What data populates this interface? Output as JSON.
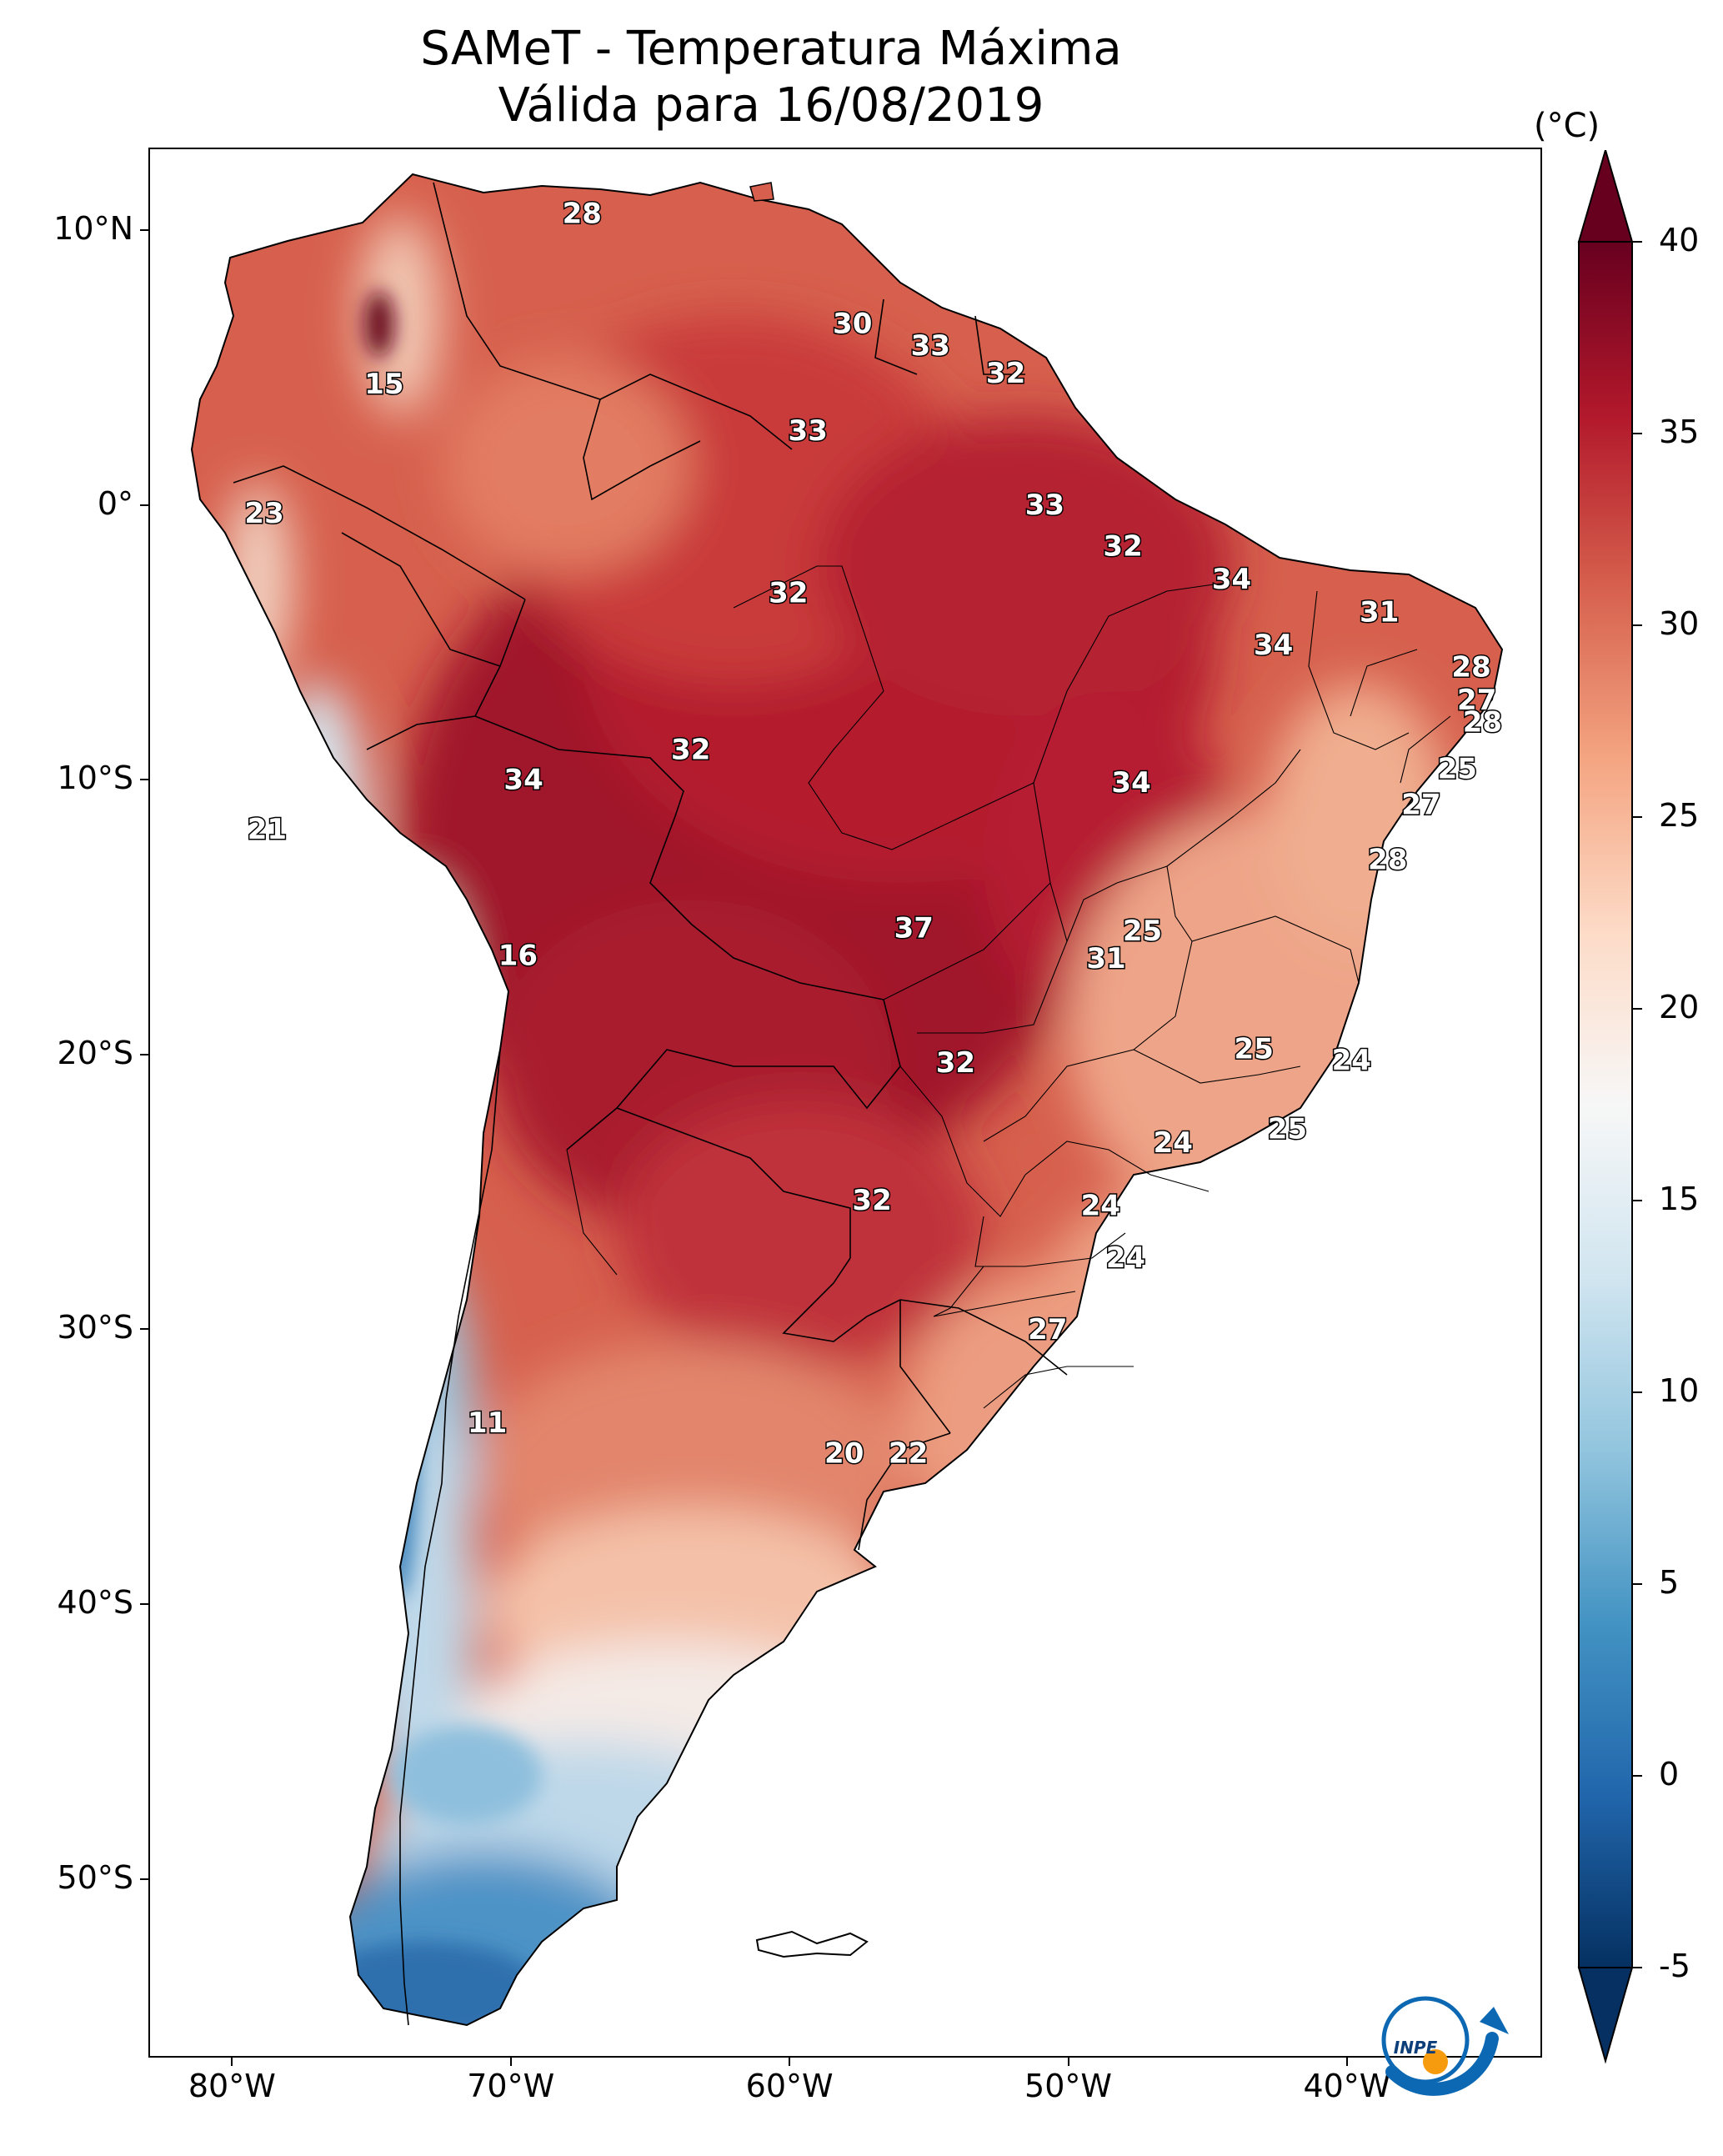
{
  "title": {
    "line1": "SAMeT - Temperatura Máxima",
    "line2": "Válida para 16/08/2019"
  },
  "axes": {
    "lat_labels": [
      "10°N",
      "0°",
      "10°S",
      "20°S",
      "30°S",
      "40°S",
      "50°S"
    ],
    "lat_values": [
      10,
      0,
      -10,
      -20,
      -30,
      -40,
      -50
    ],
    "lon_labels": [
      "80°W",
      "70°W",
      "60°W",
      "50°W",
      "40°W"
    ],
    "lon_values": [
      -80,
      -70,
      -60,
      -50,
      -40
    ],
    "lon_range": [
      -83,
      -33
    ],
    "lat_range": [
      -56.5,
      13
    ]
  },
  "colorbar": {
    "unit": "(°C)",
    "labels": [
      "40",
      "35",
      "30",
      "25",
      "20",
      "15",
      "10",
      "5",
      "0",
      "-5"
    ],
    "values": [
      40,
      35,
      30,
      25,
      20,
      15,
      10,
      5,
      0,
      -5
    ],
    "min": -5,
    "max": 40,
    "colors": [
      "#053061",
      "#2166ac",
      "#4393c3",
      "#92c5de",
      "#d1e5f0",
      "#f7f7f7",
      "#fddbc7",
      "#f4a582",
      "#d6604d",
      "#b2182b",
      "#67001f"
    ]
  },
  "temperature_labels": [
    {
      "text": "28",
      "lon": -67.5,
      "lat": 10.6
    },
    {
      "text": "15",
      "lon": -74.6,
      "lat": 4.4
    },
    {
      "text": "30",
      "lon": -57.8,
      "lat": 6.6
    },
    {
      "text": "33",
      "lon": -55.0,
      "lat": 5.8
    },
    {
      "text": "32",
      "lon": -52.3,
      "lat": 4.8
    },
    {
      "text": "33",
      "lon": -59.4,
      "lat": 2.7
    },
    {
      "text": "23",
      "lon": -78.9,
      "lat": -0.3
    },
    {
      "text": "33",
      "lon": -50.9,
      "lat": 0.0
    },
    {
      "text": "32",
      "lon": -48.1,
      "lat": -1.5
    },
    {
      "text": "34",
      "lon": -44.2,
      "lat": -2.7
    },
    {
      "text": "31",
      "lon": -38.9,
      "lat": -3.9
    },
    {
      "text": "32",
      "lon": -60.1,
      "lat": -3.2
    },
    {
      "text": "34",
      "lon": -42.7,
      "lat": -5.1
    },
    {
      "text": "28",
      "lon": -35.6,
      "lat": -5.9
    },
    {
      "text": "27",
      "lon": -35.4,
      "lat": -7.1
    },
    {
      "text": "28",
      "lon": -35.2,
      "lat": -7.9
    },
    {
      "text": "32",
      "lon": -63.6,
      "lat": -8.9
    },
    {
      "text": "34",
      "lon": -69.6,
      "lat": -10.0
    },
    {
      "text": "34",
      "lon": -47.8,
      "lat": -10.1
    },
    {
      "text": "25",
      "lon": -36.1,
      "lat": -9.6
    },
    {
      "text": "27",
      "lon": -37.4,
      "lat": -10.9
    },
    {
      "text": "21",
      "lon": -78.8,
      "lat": -11.8
    },
    {
      "text": "28",
      "lon": -38.6,
      "lat": -12.9
    },
    {
      "text": "37",
      "lon": -55.6,
      "lat": -15.4
    },
    {
      "text": "25",
      "lon": -47.4,
      "lat": -15.5
    },
    {
      "text": "31",
      "lon": -48.7,
      "lat": -16.5
    },
    {
      "text": "16",
      "lon": -69.8,
      "lat": -16.4
    },
    {
      "text": "25",
      "lon": -43.4,
      "lat": -19.8
    },
    {
      "text": "24",
      "lon": -39.9,
      "lat": -20.2
    },
    {
      "text": "32",
      "lon": -54.1,
      "lat": -20.3
    },
    {
      "text": "25",
      "lon": -42.2,
      "lat": -22.7
    },
    {
      "text": "24",
      "lon": -46.3,
      "lat": -23.2
    },
    {
      "text": "32",
      "lon": -57.1,
      "lat": -25.3
    },
    {
      "text": "24",
      "lon": -48.9,
      "lat": -25.5
    },
    {
      "text": "24",
      "lon": -48.0,
      "lat": -27.4
    },
    {
      "text": "27",
      "lon": -50.8,
      "lat": -30.0
    },
    {
      "text": "11",
      "lon": -70.9,
      "lat": -33.4
    },
    {
      "text": "20",
      "lon": -58.1,
      "lat": -34.5
    },
    {
      "text": "22",
      "lon": -55.8,
      "lat": -34.5
    }
  ],
  "logo": {
    "text": "INPE"
  }
}
